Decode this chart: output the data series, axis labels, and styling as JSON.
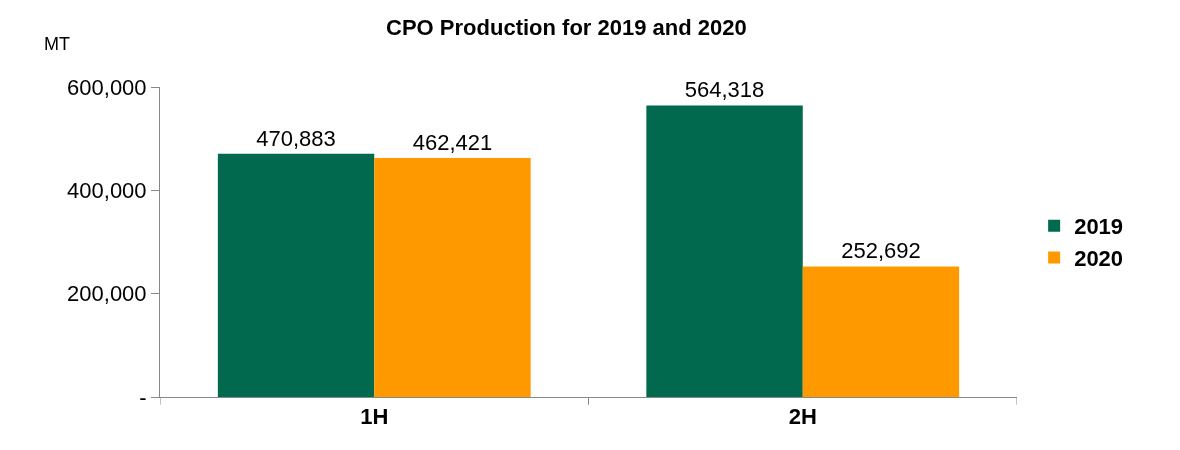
{
  "chart_data": {
    "type": "bar",
    "title": "CPO Production for 2019 and 2020",
    "ylabel": "MT",
    "categories": [
      "1H",
      "2H"
    ],
    "series": [
      {
        "name": "2019",
        "color": "#00694e",
        "values": [
          470883,
          564318
        ],
        "value_labels": [
          "470,883",
          "564,318"
        ]
      },
      {
        "name": "2020",
        "color": "#ff9900",
        "values": [
          462421,
          252692
        ],
        "value_labels": [
          "462,421",
          "252,692"
        ]
      }
    ],
    "ylim": [
      0,
      600000
    ],
    "yticks": [
      {
        "value": 0,
        "label": "-"
      },
      {
        "value": 200000,
        "label": "200,000"
      },
      {
        "value": 400000,
        "label": "400,000"
      },
      {
        "value": 600000,
        "label": "600,000"
      }
    ],
    "legend": "right"
  }
}
